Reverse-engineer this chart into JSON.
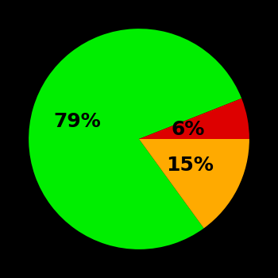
{
  "slices": [
    79,
    6,
    15
  ],
  "colors": [
    "#00ee00",
    "#dd0000",
    "#ffaa00"
  ],
  "labels": [
    "79%",
    "6%",
    "15%"
  ],
  "background_color": "#000000",
  "startangle": -54,
  "figsize": [
    3.5,
    3.5
  ],
  "dpi": 100,
  "text_fontsize": 18,
  "text_fontweight": "bold",
  "label_radii": [
    0.58,
    0.45,
    0.52
  ]
}
